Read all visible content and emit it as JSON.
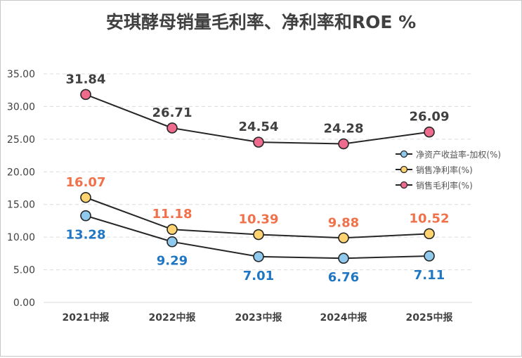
{
  "chart_data": {
    "type": "line",
    "title": "安琪酵母销量毛利率、净利率和ROE %",
    "xlabel": "",
    "ylabel": "",
    "categories": [
      "2021中报",
      "2022中报",
      "2023中报",
      "2024中报",
      "2025中报"
    ],
    "ylim": [
      0,
      35
    ],
    "yticks": [
      "0.00",
      "5.00",
      "10.00",
      "15.00",
      "20.00",
      "25.00",
      "30.00",
      "35.00"
    ],
    "ytick_values": [
      0,
      5,
      10,
      15,
      20,
      25,
      30,
      35
    ],
    "grid": true,
    "legend_position": "right",
    "series": [
      {
        "name": "净资产收益率-加权(%)",
        "values": [
          13.28,
          9.29,
          7.01,
          6.76,
          7.11
        ],
        "labels": [
          "13.28",
          "9.29",
          "7.01",
          "6.76",
          "7.11"
        ],
        "marker_color": "#8fc9ee",
        "label_color": "#1f77c4",
        "label_pos": "below"
      },
      {
        "name": "销售净利率(%)",
        "values": [
          16.07,
          11.18,
          10.39,
          9.88,
          10.52
        ],
        "labels": [
          "16.07",
          "11.18",
          "10.39",
          "9.88",
          "10.52"
        ],
        "marker_color": "#ffd470",
        "label_color": "#f0714a",
        "label_pos": "above"
      },
      {
        "name": "销售毛利率(%)",
        "values": [
          31.84,
          26.71,
          24.54,
          24.28,
          26.09
        ],
        "labels": [
          "31.84",
          "26.71",
          "24.54",
          "24.28",
          "26.09"
        ],
        "marker_color": "#ee6b8e",
        "label_color": "#404040",
        "label_pos": "above"
      }
    ]
  }
}
